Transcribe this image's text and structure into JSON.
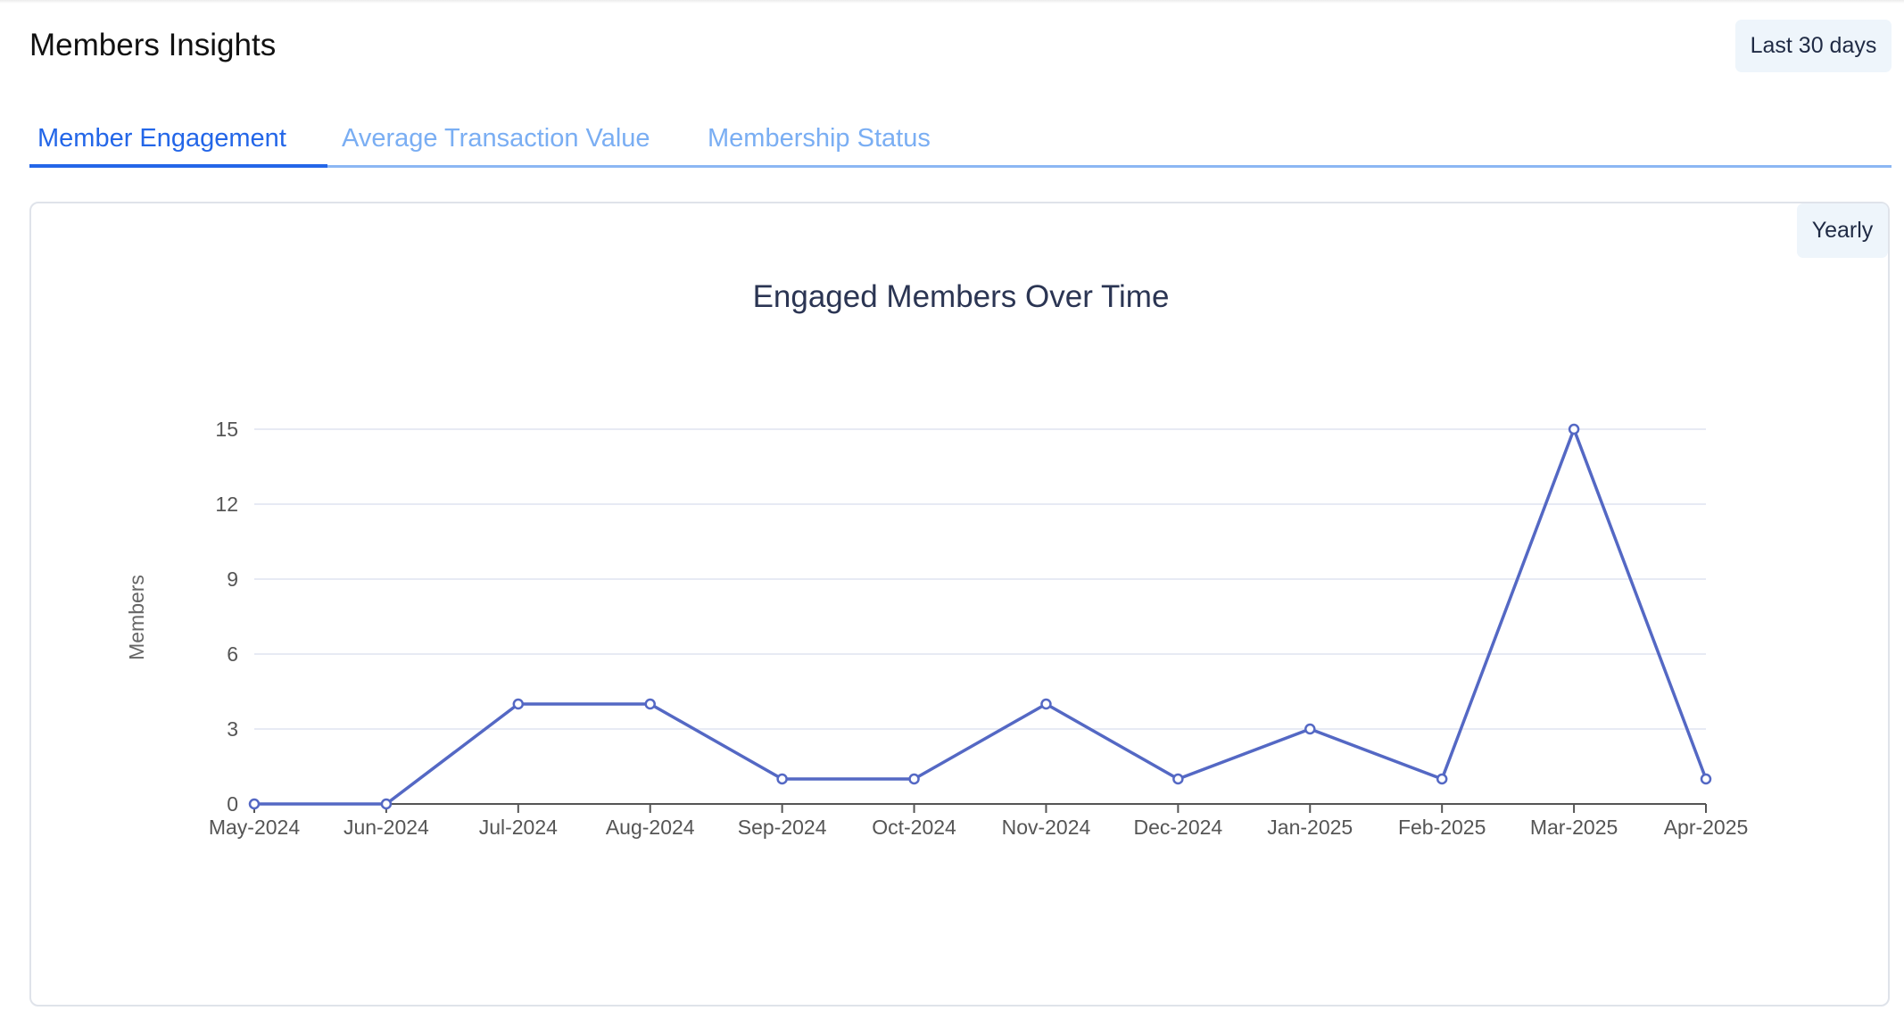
{
  "header": {
    "title": "Members Insights",
    "range_label": "Last 30 days"
  },
  "tabs": [
    {
      "label": "Member Engagement",
      "active": true
    },
    {
      "label": "Average Transaction Value",
      "active": false
    },
    {
      "label": "Membership Status",
      "active": false
    }
  ],
  "panel": {
    "period_label": "Yearly"
  },
  "colors": {
    "accent": "#2366e8",
    "tab_inactive": "#7aaef3",
    "series": "#5468c4",
    "grid": "#dfe3f1"
  },
  "chart_data": {
    "type": "line",
    "title": "Engaged Members Over Time",
    "xlabel": "",
    "ylabel": "Members",
    "categories": [
      "May-2024",
      "Jun-2024",
      "Jul-2024",
      "Aug-2024",
      "Sep-2024",
      "Oct-2024",
      "Nov-2024",
      "Dec-2024",
      "Jan-2025",
      "Feb-2025",
      "Mar-2025",
      "Apr-2025"
    ],
    "series": [
      {
        "values": [
          0,
          0,
          4,
          4,
          1,
          1,
          4,
          1,
          3,
          1,
          15,
          1
        ]
      }
    ],
    "yticks": [
      0,
      3,
      6,
      9,
      12,
      15
    ],
    "ylim": [
      0,
      15
    ],
    "grid": true,
    "legend": "none"
  }
}
